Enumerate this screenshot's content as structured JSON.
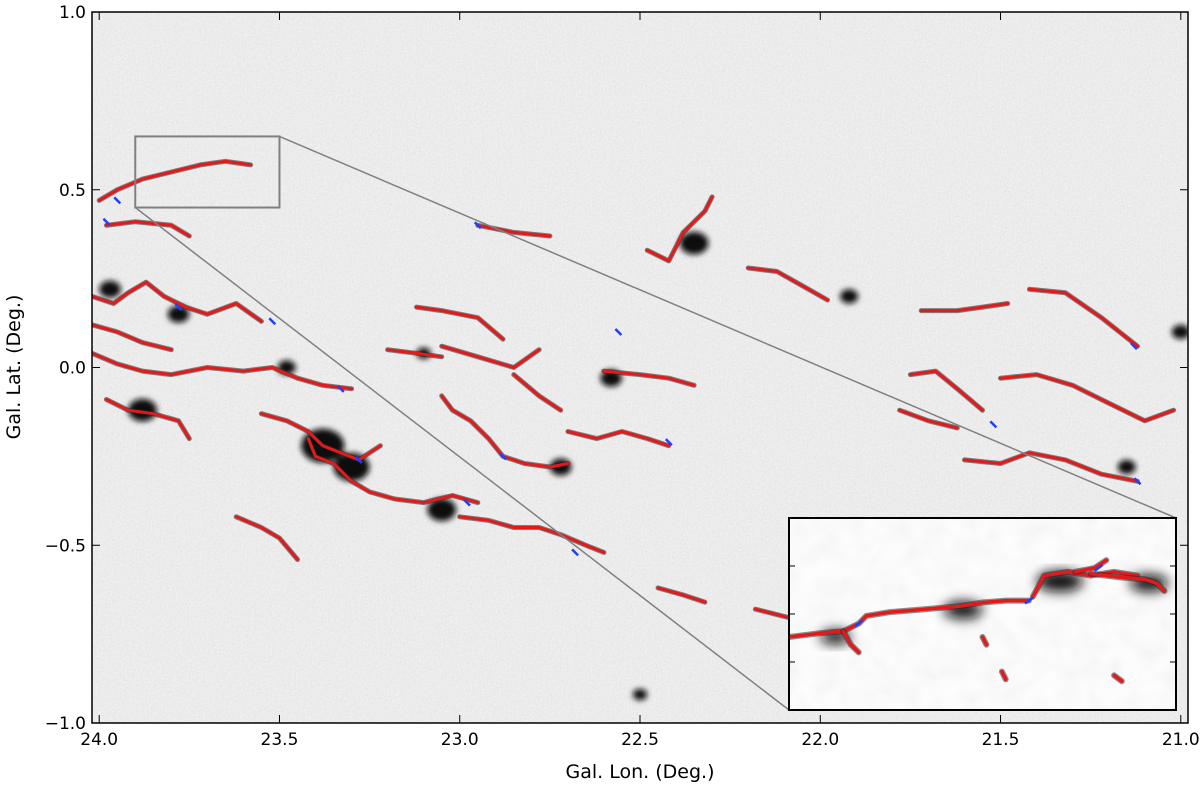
{
  "chart_data": {
    "type": "image-map",
    "xlabel": "Gal. Lon. (Deg.)",
    "ylabel": "Gal. Lat. (Deg.)",
    "xlim": [
      24.02,
      20.98
    ],
    "ylim": [
      -1.0,
      1.0
    ],
    "x_ticks": [
      {
        "value": 24.0,
        "label": "24.0"
      },
      {
        "value": 23.5,
        "label": "23.5"
      },
      {
        "value": 23.0,
        "label": "23.0"
      },
      {
        "value": 22.5,
        "label": "22.5"
      },
      {
        "value": 22.0,
        "label": "22.0"
      },
      {
        "value": 21.5,
        "label": "21.5"
      },
      {
        "value": 21.0,
        "label": "21.0"
      }
    ],
    "y_ticks": [
      {
        "value": 1.0,
        "label": "1.0"
      },
      {
        "value": 0.5,
        "label": "0.5"
      },
      {
        "value": 0.0,
        "label": "0.0"
      },
      {
        "value": -0.5,
        "label": "−0.5"
      },
      {
        "value": -1.0,
        "label": "−1.0"
      }
    ],
    "colors": {
      "filament": "#e31a1c",
      "junction": "#1f3fff",
      "clump": "#111111",
      "background": "#e6e6e6",
      "zoom_box": "#808080"
    },
    "zoom_region": {
      "lon": [
        23.9,
        23.5
      ],
      "lat": [
        0.45,
        0.65
      ]
    },
    "filaments": [
      [
        [
          24.0,
          0.47
        ],
        [
          23.95,
          0.5
        ],
        [
          23.88,
          0.53
        ],
        [
          23.8,
          0.55
        ],
        [
          23.72,
          0.57
        ],
        [
          23.65,
          0.58
        ],
        [
          23.58,
          0.57
        ]
      ],
      [
        [
          23.98,
          0.4
        ],
        [
          23.9,
          0.41
        ],
        [
          23.8,
          0.4
        ],
        [
          23.75,
          0.37
        ]
      ],
      [
        [
          24.02,
          0.2
        ],
        [
          23.96,
          0.18
        ],
        [
          23.92,
          0.21
        ],
        [
          23.87,
          0.24
        ],
        [
          23.82,
          0.2
        ],
        [
          23.76,
          0.17
        ],
        [
          23.7,
          0.15
        ],
        [
          23.62,
          0.18
        ],
        [
          23.55,
          0.13
        ]
      ],
      [
        [
          24.02,
          0.12
        ],
        [
          23.95,
          0.1
        ],
        [
          23.88,
          0.07
        ],
        [
          23.8,
          0.05
        ]
      ],
      [
        [
          24.02,
          0.04
        ],
        [
          23.95,
          0.01
        ],
        [
          23.88,
          -0.01
        ],
        [
          23.8,
          -0.02
        ],
        [
          23.7,
          0.0
        ],
        [
          23.6,
          -0.01
        ],
        [
          23.52,
          0.0
        ],
        [
          23.45,
          -0.03
        ],
        [
          23.38,
          -0.05
        ],
        [
          23.3,
          -0.06
        ]
      ],
      [
        [
          23.98,
          -0.09
        ],
        [
          23.92,
          -0.12
        ],
        [
          23.85,
          -0.13
        ],
        [
          23.78,
          -0.15
        ],
        [
          23.75,
          -0.2
        ]
      ],
      [
        [
          23.55,
          -0.13
        ],
        [
          23.48,
          -0.15
        ],
        [
          23.42,
          -0.18
        ],
        [
          23.38,
          -0.22
        ],
        [
          23.33,
          -0.24
        ],
        [
          23.28,
          -0.26
        ],
        [
          23.22,
          -0.22
        ]
      ],
      [
        [
          23.42,
          -0.2
        ],
        [
          23.4,
          -0.25
        ],
        [
          23.35,
          -0.27
        ],
        [
          23.3,
          -0.32
        ],
        [
          23.25,
          -0.35
        ],
        [
          23.18,
          -0.37
        ],
        [
          23.1,
          -0.38
        ],
        [
          23.02,
          -0.36
        ],
        [
          22.95,
          -0.38
        ]
      ],
      [
        [
          23.0,
          -0.42
        ],
        [
          22.92,
          -0.43
        ],
        [
          22.85,
          -0.45
        ],
        [
          22.78,
          -0.45
        ],
        [
          22.72,
          -0.47
        ],
        [
          22.65,
          -0.5
        ],
        [
          22.6,
          -0.52
        ]
      ],
      [
        [
          23.05,
          -0.08
        ],
        [
          23.02,
          -0.12
        ],
        [
          22.97,
          -0.15
        ],
        [
          22.92,
          -0.2
        ],
        [
          22.88,
          -0.25
        ],
        [
          22.82,
          -0.27
        ],
        [
          22.75,
          -0.28
        ],
        [
          22.7,
          -0.27
        ]
      ],
      [
        [
          22.7,
          -0.18
        ],
        [
          22.62,
          -0.2
        ],
        [
          22.55,
          -0.18
        ],
        [
          22.48,
          -0.2
        ],
        [
          22.42,
          -0.22
        ]
      ],
      [
        [
          23.12,
          0.17
        ],
        [
          23.05,
          0.16
        ],
        [
          22.95,
          0.14
        ],
        [
          22.88,
          0.08
        ]
      ],
      [
        [
          23.05,
          0.06
        ],
        [
          22.95,
          0.03
        ],
        [
          22.85,
          0.0
        ],
        [
          22.78,
          0.05
        ]
      ],
      [
        [
          22.6,
          -0.01
        ],
        [
          22.5,
          -0.02
        ],
        [
          22.42,
          -0.03
        ],
        [
          22.35,
          -0.05
        ]
      ],
      [
        [
          22.95,
          0.4
        ],
        [
          22.85,
          0.38
        ],
        [
          22.75,
          0.37
        ]
      ],
      [
        [
          22.48,
          0.33
        ],
        [
          22.42,
          0.3
        ],
        [
          22.38,
          0.38
        ],
        [
          22.32,
          0.44
        ],
        [
          22.3,
          0.48
        ]
      ],
      [
        [
          22.2,
          0.28
        ],
        [
          22.12,
          0.27
        ],
        [
          22.05,
          0.23
        ],
        [
          21.98,
          0.19
        ]
      ],
      [
        [
          21.72,
          0.16
        ],
        [
          21.62,
          0.16
        ],
        [
          21.55,
          0.17
        ],
        [
          21.48,
          0.18
        ]
      ],
      [
        [
          21.42,
          0.22
        ],
        [
          21.32,
          0.21
        ],
        [
          21.22,
          0.14
        ],
        [
          21.12,
          0.06
        ]
      ],
      [
        [
          21.5,
          -0.03
        ],
        [
          21.4,
          -0.02
        ],
        [
          21.3,
          -0.05
        ],
        [
          21.2,
          -0.1
        ],
        [
          21.1,
          -0.15
        ],
        [
          21.02,
          -0.12
        ]
      ],
      [
        [
          21.75,
          -0.02
        ],
        [
          21.68,
          -0.01
        ],
        [
          21.62,
          -0.06
        ],
        [
          21.55,
          -0.12
        ]
      ],
      [
        [
          21.6,
          -0.26
        ],
        [
          21.5,
          -0.27
        ],
        [
          21.42,
          -0.24
        ],
        [
          21.32,
          -0.26
        ],
        [
          21.22,
          -0.3
        ],
        [
          21.12,
          -0.32
        ]
      ],
      [
        [
          21.78,
          -0.12
        ],
        [
          21.7,
          -0.15
        ],
        [
          21.62,
          -0.17
        ]
      ],
      [
        [
          23.62,
          -0.42
        ],
        [
          23.55,
          -0.45
        ],
        [
          23.5,
          -0.48
        ],
        [
          23.45,
          -0.54
        ]
      ],
      [
        [
          22.18,
          -0.68
        ],
        [
          22.1,
          -0.7
        ],
        [
          22.02,
          -0.72
        ],
        [
          21.96,
          -0.75
        ]
      ],
      [
        [
          22.45,
          -0.62
        ],
        [
          22.38,
          -0.64
        ],
        [
          22.32,
          -0.66
        ]
      ],
      [
        [
          23.2,
          0.05
        ],
        [
          23.12,
          0.04
        ],
        [
          23.05,
          0.03
        ]
      ],
      [
        [
          22.85,
          -0.02
        ],
        [
          22.78,
          -0.08
        ],
        [
          22.72,
          -0.12
        ]
      ]
    ],
    "junctions": [
      [
        23.95,
        0.47
      ],
      [
        23.98,
        0.41
      ],
      [
        23.78,
        0.17
      ],
      [
        23.52,
        0.13
      ],
      [
        23.33,
        -0.06
      ],
      [
        23.28,
        -0.26
      ],
      [
        22.98,
        -0.38
      ],
      [
        22.88,
        -0.25
      ],
      [
        22.68,
        -0.52
      ],
      [
        22.42,
        -0.21
      ],
      [
        22.56,
        0.1
      ],
      [
        22.95,
        0.4
      ],
      [
        21.13,
        0.06
      ],
      [
        21.12,
        -0.32
      ],
      [
        21.52,
        -0.16
      ]
    ],
    "clumps": [
      {
        "lon": 23.38,
        "lat": -0.22,
        "r": 0.06
      },
      {
        "lon": 23.3,
        "lat": -0.28,
        "r": 0.05
      },
      {
        "lon": 23.05,
        "lat": -0.4,
        "r": 0.04
      },
      {
        "lon": 22.72,
        "lat": -0.28,
        "r": 0.03
      },
      {
        "lon": 22.35,
        "lat": 0.35,
        "r": 0.04
      },
      {
        "lon": 23.88,
        "lat": -0.12,
        "r": 0.04
      },
      {
        "lon": 23.97,
        "lat": 0.22,
        "r": 0.03
      },
      {
        "lon": 22.58,
        "lat": -0.03,
        "r": 0.03
      },
      {
        "lon": 21.92,
        "lat": 0.2,
        "r": 0.025
      },
      {
        "lon": 21.15,
        "lat": -0.28,
        "r": 0.025
      },
      {
        "lon": 21.0,
        "lat": 0.1,
        "r": 0.025
      },
      {
        "lon": 23.78,
        "lat": 0.15,
        "r": 0.03
      },
      {
        "lon": 22.05,
        "lat": -0.68,
        "r": 0.02
      },
      {
        "lon": 22.5,
        "lat": -0.92,
        "r": 0.02
      },
      {
        "lon": 23.48,
        "lat": 0.0,
        "r": 0.025
      },
      {
        "lon": 23.1,
        "lat": 0.04,
        "r": 0.02
      }
    ],
    "inset": {
      "filaments": [
        [
          [
            0.0,
            0.62
          ],
          [
            0.08,
            0.6
          ],
          [
            0.14,
            0.59
          ],
          [
            0.18,
            0.55
          ],
          [
            0.2,
            0.51
          ],
          [
            0.26,
            0.49
          ],
          [
            0.32,
            0.48
          ],
          [
            0.38,
            0.47
          ],
          [
            0.44,
            0.46
          ],
          [
            0.5,
            0.44
          ],
          [
            0.56,
            0.43
          ],
          [
            0.62,
            0.43
          ]
        ],
        [
          [
            0.14,
            0.59
          ],
          [
            0.16,
            0.66
          ],
          [
            0.18,
            0.7
          ]
        ],
        [
          [
            0.63,
            0.41
          ],
          [
            0.66,
            0.3
          ],
          [
            0.72,
            0.28
          ],
          [
            0.78,
            0.3
          ],
          [
            0.84,
            0.28
          ],
          [
            0.9,
            0.3
          ]
        ],
        [
          [
            0.74,
            0.28
          ],
          [
            0.79,
            0.26
          ],
          [
            0.82,
            0.22
          ]
        ],
        [
          [
            0.78,
            0.29
          ],
          [
            0.82,
            0.3
          ],
          [
            0.86,
            0.31
          ],
          [
            0.92,
            0.32
          ],
          [
            0.95,
            0.34
          ],
          [
            0.97,
            0.38
          ]
        ],
        [
          [
            0.5,
            0.62
          ],
          [
            0.51,
            0.66
          ]
        ],
        [
          [
            0.55,
            0.8
          ],
          [
            0.56,
            0.84
          ]
        ],
        [
          [
            0.84,
            0.82
          ],
          [
            0.86,
            0.85
          ]
        ]
      ],
      "junctions": [
        [
          0.62,
          0.43
        ],
        [
          0.18,
          0.55
        ],
        [
          0.8,
          0.26
        ]
      ],
      "clumps": [
        {
          "x": 0.12,
          "y": 0.62,
          "r": 0.04
        },
        {
          "x": 0.45,
          "y": 0.48,
          "r": 0.05
        },
        {
          "x": 0.7,
          "y": 0.33,
          "r": 0.06
        },
        {
          "x": 0.93,
          "y": 0.34,
          "r": 0.05
        }
      ]
    }
  }
}
